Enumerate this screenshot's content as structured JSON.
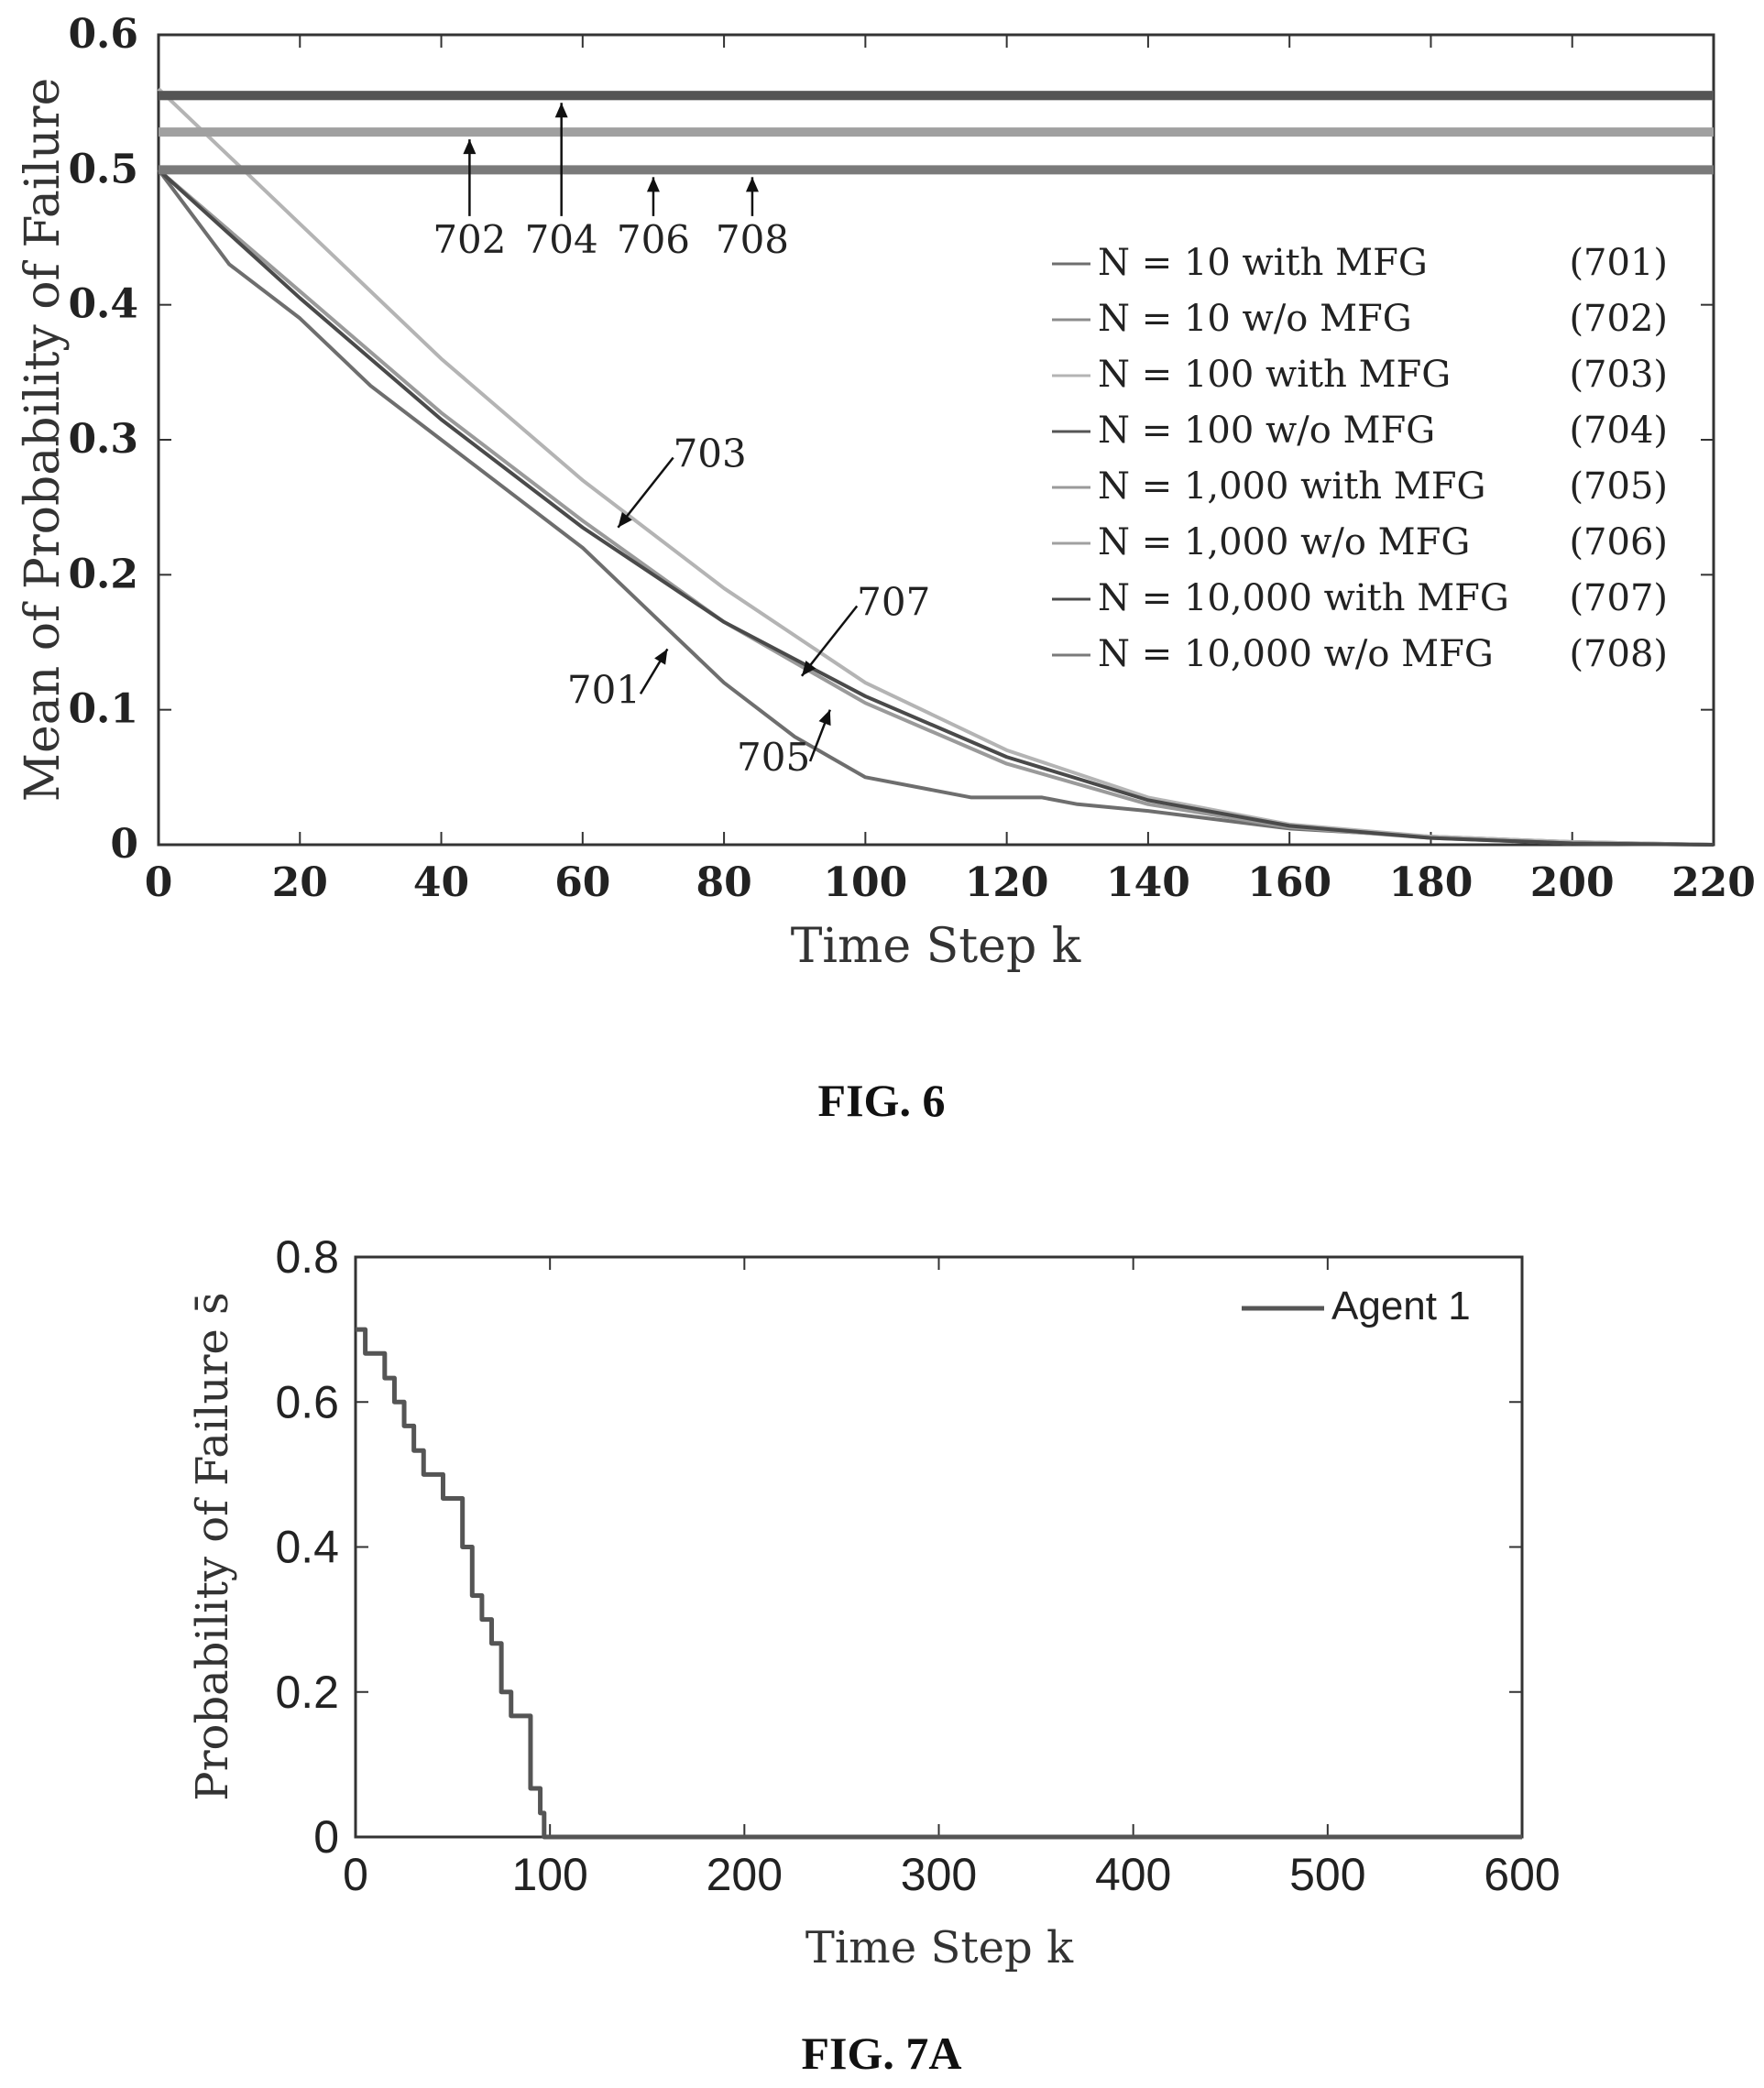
{
  "figures": [
    {
      "caption": "FIG. 6"
    },
    {
      "caption": "FIG. 7A"
    }
  ],
  "chart_data": [
    {
      "type": "line",
      "xlabel": "Time Step k",
      "ylabel": "Mean of Probability of Failure",
      "xlim": [
        0,
        220
      ],
      "ylim": [
        0,
        0.6
      ],
      "xticks": [
        0,
        20,
        40,
        60,
        80,
        100,
        120,
        140,
        160,
        180,
        200,
        220
      ],
      "yticks": [
        0,
        0.1,
        0.2,
        0.3,
        0.4,
        0.5,
        0.6
      ],
      "xtick_labels": [
        "0",
        "20",
        "40",
        "60",
        "80",
        "100",
        "120",
        "140",
        "160",
        "180",
        "200",
        "220"
      ],
      "ytick_labels": [
        "0",
        "0.1",
        "0.2",
        "0.3",
        "0.4",
        "0.5",
        "0.6"
      ],
      "legend": "right",
      "series": [
        {
          "name": "N = 10 with MFG",
          "ref": "(701)",
          "color": "#6e6e6e",
          "x": [
            0,
            10,
            20,
            30,
            40,
            50,
            60,
            70,
            80,
            90,
            95,
            100,
            110,
            115,
            125,
            130,
            140,
            160,
            180,
            200,
            220
          ],
          "y": [
            0.5,
            0.43,
            0.39,
            0.34,
            0.3,
            0.26,
            0.22,
            0.17,
            0.12,
            0.08,
            0.065,
            0.05,
            0.04,
            0.035,
            0.035,
            0.03,
            0.025,
            0.012,
            0.006,
            0.002,
            0.0
          ]
        },
        {
          "name": "N = 10 w/o MFG",
          "ref": "(702)",
          "color": "#8c8c8c",
          "x": [
            0,
            220
          ],
          "y": [
            0.555,
            0.555
          ]
        },
        {
          "name": "N = 100 with MFG",
          "ref": "(703)",
          "color": "#b4b4b4",
          "x": [
            0,
            20,
            40,
            60,
            80,
            100,
            120,
            140,
            160,
            180,
            200,
            220
          ],
          "y": [
            0.56,
            0.46,
            0.36,
            0.27,
            0.19,
            0.12,
            0.07,
            0.035,
            0.015,
            0.006,
            0.002,
            0.0
          ]
        },
        {
          "name": "N = 100 w/o MFG",
          "ref": "(704)",
          "color": "#555555",
          "x": [
            0,
            220
          ],
          "y": [
            0.555,
            0.555
          ]
        },
        {
          "name": "N = 1,000 with MFG",
          "ref": "(705)",
          "color": "#9a9a9a",
          "x": [
            0,
            20,
            40,
            60,
            80,
            100,
            120,
            140,
            160,
            180,
            200,
            220
          ],
          "y": [
            0.5,
            0.41,
            0.32,
            0.24,
            0.165,
            0.105,
            0.06,
            0.03,
            0.013,
            0.005,
            0.001,
            0.0
          ]
        },
        {
          "name": "N = 1,000 w/o MFG",
          "ref": "(706)",
          "color": "#a0a0a0",
          "x": [
            0,
            220
          ],
          "y": [
            0.528,
            0.528
          ]
        },
        {
          "name": "N = 10,000 with MFG",
          "ref": "(707)",
          "color": "#4a4a4a",
          "x": [
            0,
            20,
            40,
            60,
            80,
            100,
            120,
            140,
            160,
            180,
            200,
            220
          ],
          "y": [
            0.5,
            0.405,
            0.315,
            0.235,
            0.165,
            0.11,
            0.065,
            0.033,
            0.014,
            0.005,
            0.001,
            0.0
          ]
        },
        {
          "name": "N = 10,000 w/o MFG",
          "ref": "(708)",
          "color": "#7a7a7a",
          "x": [
            0,
            220
          ],
          "y": [
            0.5,
            0.5
          ]
        }
      ],
      "annotations": [
        {
          "text": "702",
          "x": 44,
          "y": 0.52,
          "target_y": 0.528
        },
        {
          "text": "704",
          "x": 57,
          "y": 0.52,
          "target_y": 0.555
        },
        {
          "text": "706",
          "x": 70,
          "y": 0.52,
          "target_y": 0.5
        },
        {
          "text": "708",
          "x": 84,
          "y": 0.52,
          "target_y": 0.5
        },
        {
          "text": "703",
          "x": 78,
          "y": 0.28,
          "target_x": 65,
          "target_y": 0.235
        },
        {
          "text": "707",
          "x": 104,
          "y": 0.17,
          "target_x": 91,
          "target_y": 0.125
        },
        {
          "text": "701",
          "x": 63,
          "y": 0.105,
          "target_x": 72,
          "target_y": 0.145
        },
        {
          "text": "705",
          "x": 87,
          "y": 0.055,
          "target_x": 95,
          "target_y": 0.1
        }
      ]
    },
    {
      "type": "line",
      "xlabel": "Time Step k",
      "ylabel": "Probability of Failure s̄",
      "xlim": [
        0,
        600
      ],
      "ylim": [
        0,
        0.8
      ],
      "xticks": [
        0,
        100,
        200,
        300,
        400,
        500,
        600
      ],
      "yticks": [
        0,
        0.2,
        0.4,
        0.6,
        0.8
      ],
      "xtick_labels": [
        "0",
        "100",
        "200",
        "300",
        "400",
        "500",
        "600"
      ],
      "ytick_labels": [
        "0",
        "0.2",
        "0.4",
        "0.6",
        "0.8"
      ],
      "legend": "top-right",
      "series": [
        {
          "name": "Agent 1",
          "color": "#555555",
          "x": [
            0,
            5,
            10,
            15,
            20,
            25,
            30,
            35,
            40,
            45,
            50,
            55,
            60,
            65,
            70,
            75,
            80,
            85,
            90,
            95,
            97,
            600
          ],
          "y": [
            0.7,
            0.667,
            0.667,
            0.633,
            0.6,
            0.567,
            0.533,
            0.5,
            0.5,
            0.467,
            0.467,
            0.4,
            0.333,
            0.3,
            0.267,
            0.2,
            0.167,
            0.167,
            0.067,
            0.033,
            0.0,
            0.0
          ]
        }
      ]
    }
  ]
}
